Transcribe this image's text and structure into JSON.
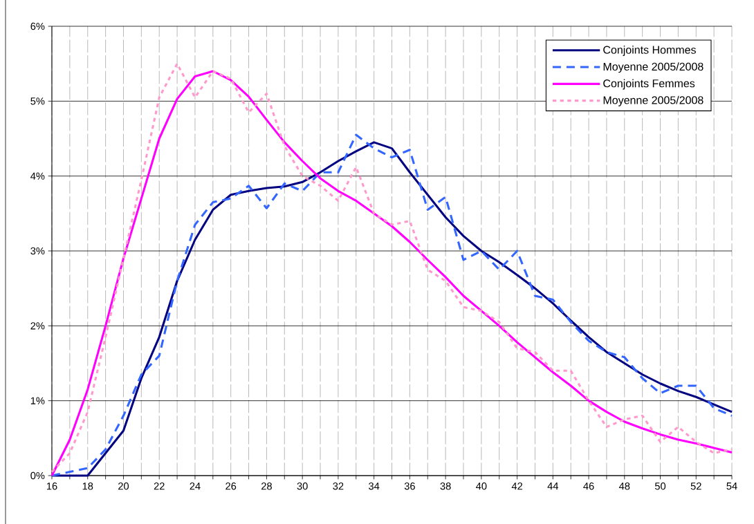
{
  "chart_data": {
    "type": "line",
    "x": [
      16,
      17,
      18,
      19,
      20,
      21,
      22,
      23,
      24,
      25,
      26,
      27,
      28,
      29,
      30,
      31,
      32,
      33,
      34,
      35,
      36,
      37,
      38,
      39,
      40,
      41,
      42,
      43,
      44,
      45,
      46,
      47,
      48,
      49,
      50,
      51,
      52,
      53,
      54
    ],
    "series": [
      {
        "name": "Conjoints Hommes",
        "color": "#000080",
        "line_style": "solid",
        "values": [
          0,
          0,
          0,
          0.3,
          0.6,
          1.3,
          1.85,
          2.6,
          3.15,
          3.55,
          3.75,
          3.8,
          3.84,
          3.86,
          3.92,
          4.05,
          4.2,
          4.33,
          4.45,
          4.37,
          4.05,
          3.75,
          3.45,
          3.2,
          3.0,
          2.85,
          2.68,
          2.5,
          2.3,
          2.07,
          1.85,
          1.65,
          1.5,
          1.35,
          1.23,
          1.13,
          1.05,
          0.95,
          0.85
        ]
      },
      {
        "name": "Moyenne 2005/2008",
        "color": "#3366ff",
        "line_style": "dashed",
        "values": [
          0,
          0.05,
          0.1,
          0.35,
          0.8,
          1.35,
          1.6,
          2.6,
          3.35,
          3.65,
          3.7,
          3.87,
          3.57,
          3.9,
          3.8,
          4.05,
          4.05,
          4.55,
          4.37,
          4.25,
          4.35,
          3.55,
          3.72,
          2.88,
          3.0,
          2.75,
          3.0,
          2.4,
          2.35,
          2.05,
          1.8,
          1.65,
          1.58,
          1.3,
          1.1,
          1.2,
          1.2,
          0.9,
          0.8
        ]
      },
      {
        "name": "Conjoints  Femmes",
        "color": "#ff00ff",
        "line_style": "solid",
        "values": [
          0,
          0.48,
          1.15,
          2.0,
          2.9,
          3.7,
          4.5,
          5.03,
          5.33,
          5.4,
          5.28,
          5.06,
          4.75,
          4.45,
          4.2,
          3.97,
          3.8,
          3.67,
          3.5,
          3.33,
          3.12,
          2.88,
          2.65,
          2.4,
          2.2,
          2.0,
          1.78,
          1.58,
          1.38,
          1.2,
          1.0,
          0.85,
          0.72,
          0.63,
          0.55,
          0.48,
          0.43,
          0.37,
          0.31
        ]
      },
      {
        "name": "Moyenne 2005/2008",
        "color": "#ff99cc",
        "line_style": "dotted",
        "values": [
          0.05,
          0.3,
          0.85,
          1.85,
          2.9,
          3.95,
          5.05,
          5.5,
          5.05,
          5.4,
          5.3,
          4.85,
          5.1,
          4.4,
          4.0,
          3.87,
          3.67,
          4.12,
          3.5,
          3.35,
          3.4,
          2.75,
          2.6,
          2.25,
          2.2,
          2.05,
          1.7,
          1.65,
          1.4,
          1.4,
          1.0,
          0.65,
          0.75,
          0.8,
          0.45,
          0.65,
          0.45,
          0.3,
          0.35
        ]
      }
    ],
    "xlim": [
      16,
      54
    ],
    "xticks": [
      16,
      {
        "value": 17,
        "label": null
      },
      18,
      {
        "value": 19,
        "label": null
      },
      20,
      {
        "value": 21,
        "label": null
      },
      22,
      {
        "value": 23,
        "label": null
      },
      24,
      {
        "value": 25,
        "label": null
      },
      26,
      {
        "value": 27,
        "label": null
      },
      28,
      {
        "value": 29,
        "label": null
      },
      30,
      {
        "value": 31,
        "label": null
      },
      32,
      {
        "value": 33,
        "label": null
      },
      34,
      {
        "value": 35,
        "label": null
      },
      36,
      {
        "value": 37,
        "label": null
      },
      38,
      {
        "value": 39,
        "label": null
      },
      40,
      {
        "value": 41,
        "label": null
      },
      42,
      {
        "value": 43,
        "label": null
      },
      44,
      {
        "value": 45,
        "label": null
      },
      46,
      {
        "value": 47,
        "label": null
      },
      48,
      {
        "value": 49,
        "label": null
      },
      50,
      {
        "value": 51,
        "label": null
      },
      52,
      {
        "value": 53,
        "label": null
      },
      54
    ],
    "ylim": [
      0,
      6
    ],
    "yticks": [
      {
        "value": 0,
        "label": "0%"
      },
      {
        "value": 1,
        "label": "1%"
      },
      {
        "value": 2,
        "label": "2%"
      },
      {
        "value": 3,
        "label": "3%"
      },
      {
        "value": 4,
        "label": "4%"
      },
      {
        "value": 5,
        "label": "5%"
      },
      {
        "value": 6,
        "label": "6%"
      }
    ],
    "grid": true,
    "legend": "top right",
    "marker": "none"
  }
}
